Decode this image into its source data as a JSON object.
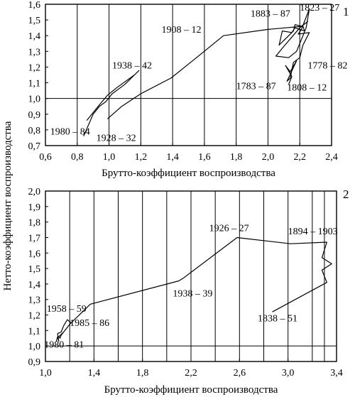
{
  "y_axis_title": "Нетто-коэффициент воспроизводства",
  "chart_data": [
    {
      "type": "line",
      "panel": "1",
      "xlabel": "Брутто-коэффициент воспроизводства",
      "ylabel": "Нетто-коэффициент воспроизводства",
      "xlim": [
        0.6,
        2.4
      ],
      "ylim": [
        0.7,
        1.6
      ],
      "xticks": [
        "0,6",
        "0,8",
        "1,0",
        "1,2",
        "1,4",
        "1,6",
        "1,8",
        "2,0",
        "2,2",
        "2,4"
      ],
      "yticks": [
        "0,7",
        "0,8",
        "0,9",
        "1,0",
        "1,1",
        "1,2",
        "1,3",
        "1,4",
        "1,5",
        "1,6"
      ],
      "vgrid": [
        0.8,
        1.0,
        1.2,
        1.4,
        1.6,
        1.8,
        2.0,
        2.2
      ],
      "hgrid": [
        1.0
      ],
      "series": [
        {
          "x": [
            1.19,
            1.1,
            1.02,
            0.98,
            0.94,
            0.9,
            0.84
          ],
          "y": [
            1.18,
            1.09,
            1.03,
            0.98,
            0.95,
            0.9,
            0.76
          ]
        },
        {
          "x": [
            1.16,
            1.05,
            0.99,
            0.94,
            0.86
          ],
          "y": [
            1.15,
            1.07,
            1.02,
            0.96,
            0.86
          ]
        },
        {
          "x": [
            0.99,
            1.08,
            1.2,
            1.39,
            1.55,
            1.72,
            2.0,
            2.22,
            2.23,
            2.17,
            2.15,
            2.09,
            2.07,
            2.13,
            2.1,
            2.16,
            2.17,
            2.21,
            2.25,
            2.2,
            2.09,
            2.05,
            2.13,
            2.18,
            2.24,
            2.26,
            2.21,
            2.19,
            2.26,
            2.22,
            2.2,
            2.16,
            2.14,
            2.12,
            2.18,
            2.14,
            2.11,
            2.15,
            2.13
          ],
          "y": [
            0.87,
            0.95,
            1.03,
            1.13,
            1.26,
            1.4,
            1.44,
            1.46,
            1.43,
            1.45,
            1.42,
            1.43,
            1.34,
            1.4,
            1.37,
            1.43,
            1.47,
            1.46,
            1.49,
            1.45,
            1.32,
            1.27,
            1.26,
            1.3,
            1.45,
            1.57,
            1.44,
            1.41,
            1.42,
            1.34,
            1.26,
            1.23,
            1.13,
            1.11,
            1.24,
            1.17,
            1.21,
            1.14,
            1.09
          ]
        }
      ],
      "annotations": [
        {
          "text": "1980 – 84",
          "x": 0.63,
          "y": 0.77
        },
        {
          "text": "1928 – 32",
          "x": 0.92,
          "y": 0.73
        },
        {
          "text": "1938 – 42",
          "x": 1.02,
          "y": 1.19
        },
        {
          "text": "1908 – 12",
          "x": 1.33,
          "y": 1.42
        },
        {
          "text": "1883 – 87",
          "x": 1.89,
          "y": 1.52
        },
        {
          "text": "1823 – 27",
          "x": 2.2,
          "y": 1.56
        },
        {
          "text": "1778 – 82",
          "x": 2.25,
          "y": 1.19
        },
        {
          "text": "1783 – 87",
          "x": 1.8,
          "y": 1.06
        },
        {
          "text": "1808 – 12",
          "x": 2.12,
          "y": 1.05
        }
      ]
    },
    {
      "type": "line",
      "panel": "2",
      "xlabel": "Брутто-коэффициент воспроизводства",
      "ylabel": "Нетто-коэффициент воспроизводства",
      "xlim": [
        1.0,
        3.4
      ],
      "ylim": [
        0.9,
        2.0
      ],
      "xticks": [
        "1,0",
        "1,4",
        "1,8",
        "2,2",
        "2,6",
        "3,0",
        "3,4"
      ],
      "yticks": [
        "0,9",
        "1,0",
        "1,1",
        "1,2",
        "1,3",
        "1,4",
        "1,5",
        "1,6",
        "1,7",
        "1,8",
        "1,9",
        "2,0"
      ],
      "vgrid": [
        1.2,
        1.4,
        1.6,
        1.8,
        2.0,
        2.2,
        2.4,
        2.6,
        2.8,
        3.0,
        3.2,
        3.3
      ],
      "hgrid": [
        1.0
      ],
      "series": [
        {
          "x": [
            1.09,
            1.1,
            1.11,
            1.1,
            1.13,
            1.15,
            1.18,
            1.21,
            1.15,
            1.11,
            1.12,
            1.13,
            1.2,
            1.37,
            2.1,
            2.14,
            2.58,
            3.02,
            3.32,
            3.28,
            3.36,
            3.28,
            3.32,
            2.87
          ],
          "y": [
            1.03,
            1.06,
            1.03,
            1.08,
            1.09,
            1.13,
            1.17,
            1.15,
            1.09,
            1.06,
            1.05,
            1.07,
            1.14,
            1.27,
            1.42,
            1.44,
            1.7,
            1.66,
            1.67,
            1.57,
            1.53,
            1.49,
            1.41,
            1.22
          ]
        }
      ],
      "annotations": [
        {
          "text": "1958 – 59",
          "x": 1.01,
          "y": 1.22
        },
        {
          "text": "1985 – 86",
          "x": 1.2,
          "y": 1.13
        },
        {
          "text": "1980 – 81",
          "x": 0.99,
          "y": 0.99
        },
        {
          "text": "1938 – 39",
          "x": 2.05,
          "y": 1.32
        },
        {
          "text": "1926 – 27",
          "x": 2.35,
          "y": 1.74
        },
        {
          "text": "1894 – 1903",
          "x": 3.0,
          "y": 1.72
        },
        {
          "text": "1838 – 51",
          "x": 2.75,
          "y": 1.16
        }
      ]
    }
  ]
}
